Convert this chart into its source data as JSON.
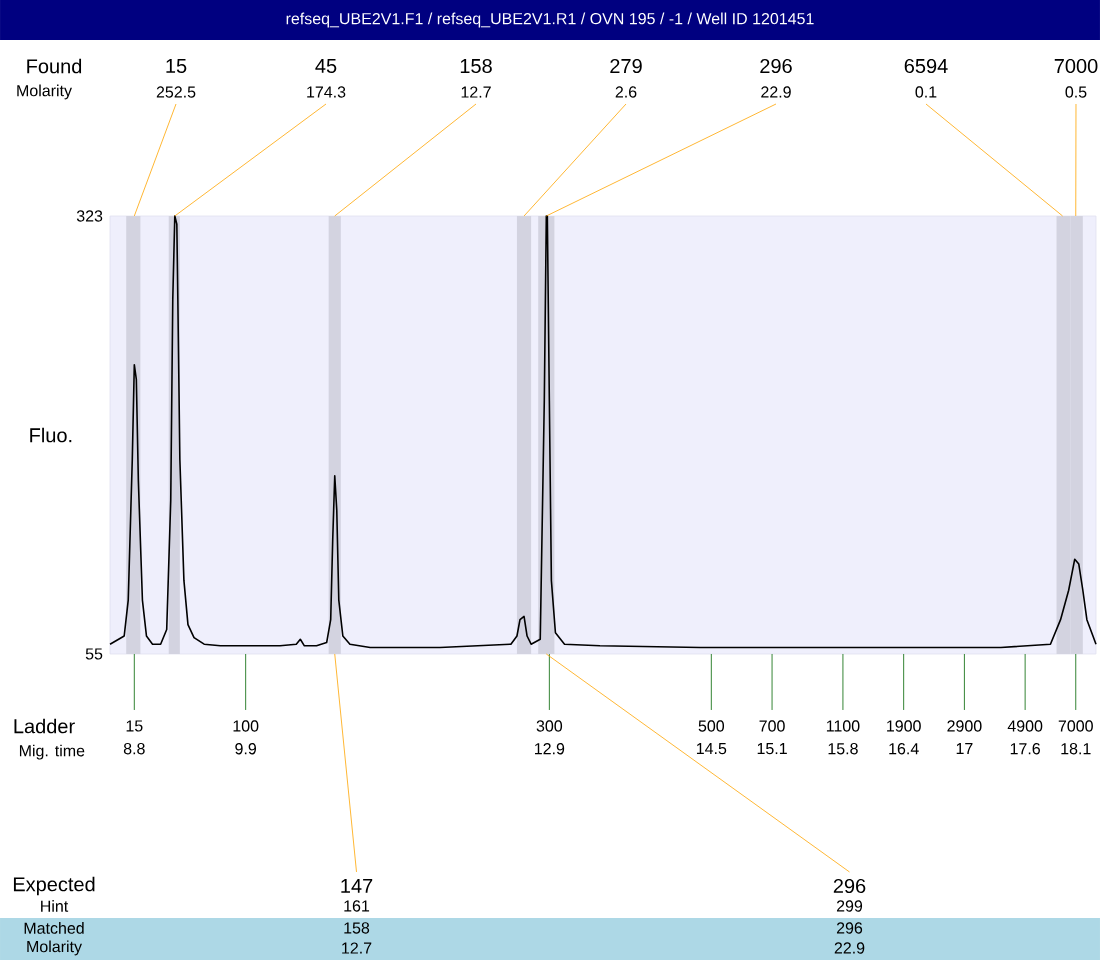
{
  "chart_data": {
    "type": "line",
    "title": "refseq_UBE2V1.F1 / refseq_UBE2V1.R1 / OVN 195 / -1 / Well ID 1201451",
    "xlabel": "Mig. time",
    "ylabel": "Fluo.",
    "xlim": [
      8.56,
      18.3
    ],
    "xticks": [
      8.8,
      9.9,
      12.9,
      14.5,
      15.1,
      15.8,
      16.4,
      17,
      17.6,
      18.1
    ],
    "ylim": [
      55,
      323
    ],
    "yticks": [
      55,
      323
    ],
    "series": [
      {
        "color": "#000000",
        "x": [
          8.56,
          8.7,
          8.74,
          8.78,
          8.8,
          8.82,
          8.84,
          8.88,
          8.92,
          8.98,
          9.06,
          9.12,
          9.16,
          9.18,
          9.2,
          9.22,
          9.23,
          9.25,
          9.29,
          9.33,
          9.39,
          9.49,
          9.65,
          10.24,
          10.4,
          10.44,
          10.48,
          10.6,
          10.7,
          10.74,
          10.76,
          10.78,
          10.8,
          10.82,
          10.86,
          10.93,
          11.13,
          11.82,
          12.52,
          12.58,
          12.61,
          12.65,
          12.68,
          12.72,
          12.81,
          12.85,
          12.87,
          12.88,
          12.9,
          12.92,
          12.96,
          13.05,
          13.4,
          14.39,
          15.38,
          16.37,
          17.36,
          17.85,
          17.95,
          18.03,
          18.09,
          18.13,
          18.17,
          18.21,
          18.27,
          18.3
        ],
        "values": [
          61,
          66,
          88,
          174,
          232,
          223,
          161,
          88,
          66,
          61,
          61,
          70,
          149,
          272,
          323,
          318,
          272,
          174,
          100,
          73,
          65,
          61,
          60,
          60,
          61,
          64,
          60,
          60,
          62,
          76,
          125,
          164,
          143,
          88,
          66,
          61,
          59,
          59,
          61,
          66,
          76,
          78,
          66,
          61,
          64,
          210,
          323,
          323,
          210,
          100,
          68,
          61,
          60,
          59,
          59,
          59,
          59,
          61,
          76,
          94,
          113,
          110,
          94,
          76,
          66,
          61
        ]
      }
    ],
    "bands": [
      {
        "axis": "x",
        "from": 8.72,
        "to": 8.86,
        "color": "#d3d3e0"
      },
      {
        "axis": "x",
        "from": 9.14,
        "to": 9.25,
        "color": "#d3d3e0"
      },
      {
        "axis": "x",
        "from": 10.72,
        "to": 10.84,
        "color": "#d3d3e0"
      },
      {
        "axis": "x",
        "from": 12.58,
        "to": 12.72,
        "color": "#d3d3e0"
      },
      {
        "axis": "x",
        "from": 12.79,
        "to": 12.95,
        "color": "#d3d3e0"
      },
      {
        "axis": "x",
        "from": 17.91,
        "to": 18.05,
        "color": "#d3d3e0"
      },
      {
        "axis": "x",
        "from": 18.05,
        "to": 18.17,
        "color": "#d3d3e0"
      }
    ],
    "annotations": [
      "Found",
      "Molarity",
      "Ladder",
      "Expected",
      "Hint",
      "Matched",
      "Molarity",
      "15",
      "45",
      "158",
      "279",
      "296",
      "6594",
      "7000",
      {
        "text": "252.5",
        "x": 8.8,
        "y": 323
      },
      {
        "text": "174.3",
        "x": 9.2,
        "y": 323
      },
      {
        "text": "12.7",
        "x": 10.78,
        "y": 323
      },
      {
        "text": "2.6",
        "x": 12.65,
        "y": 323
      },
      {
        "text": "22.9",
        "x": 12.87,
        "y": 323
      },
      {
        "text": "0.1",
        "x": 17.97,
        "y": 323
      },
      {
        "text": "0.5",
        "x": 18.1,
        "y": 323
      },
      {
        "text": "15",
        "x": 8.8,
        "y": 55
      },
      {
        "text": "100",
        "x": 9.9,
        "y": 55
      },
      {
        "text": "300",
        "x": 12.9,
        "y": 55
      },
      {
        "text": "500",
        "x": 14.5,
        "y": 55
      },
      {
        "text": "700",
        "x": 15.1,
        "y": 55
      },
      {
        "text": "1100",
        "x": 15.8,
        "y": 55
      },
      {
        "text": "1900",
        "x": 16.4,
        "y": 55
      },
      {
        "text": "2900",
        "x": 17,
        "y": 55
      },
      {
        "text": "4900",
        "x": 17.6,
        "y": 55
      },
      {
        "text": "7000",
        "x": 18.1,
        "y": 55
      },
      {
        "text": "147",
        "x": 10.78,
        "y": 55
      },
      "161",
      "158",
      "12.7",
      {
        "text": "296",
        "x": 12.87,
        "y": 55
      },
      "299",
      "296",
      "22.9"
    ]
  }
}
